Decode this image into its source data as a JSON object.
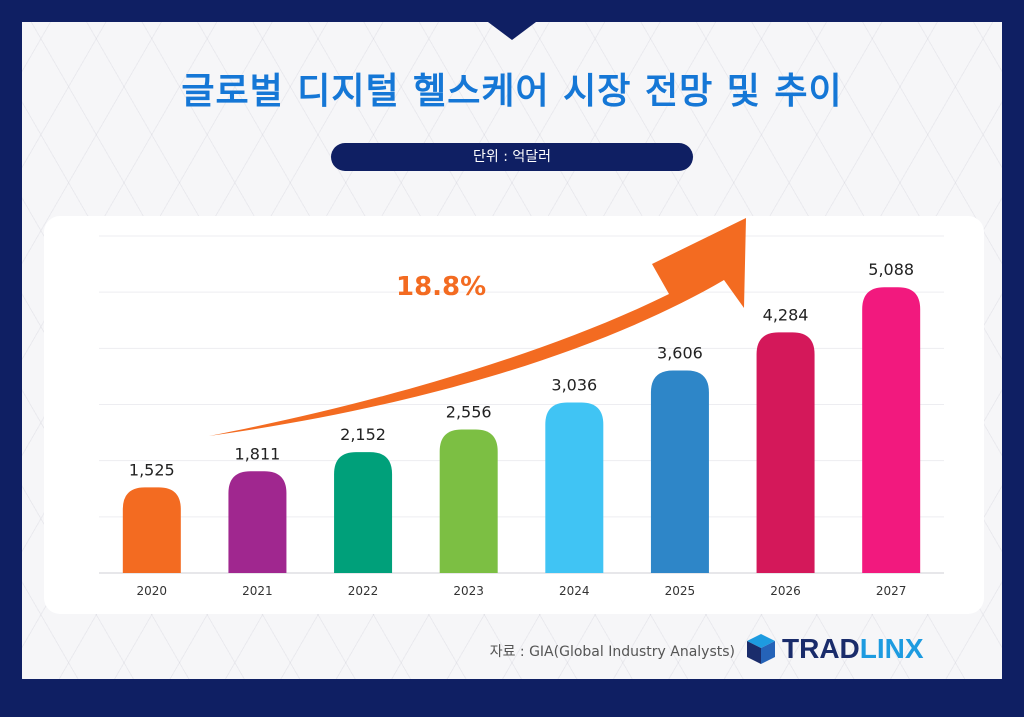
{
  "header": {
    "title": "글로벌 디지털 헬스케어 시장 전망 및 추이",
    "unit": "단위 : 억달러"
  },
  "growth_label": "18.8%",
  "source": "자료 : GIA(Global Industry Analysts)",
  "logo": {
    "part1": "TRAD",
    "part2": "LINX"
  },
  "chart_data": {
    "type": "bar",
    "title": "글로벌 디지털 헬스케어 시장 전망 및 추이",
    "unit": "단위 : 억달러",
    "categories": [
      "2020",
      "2021",
      "2022",
      "2023",
      "2024",
      "2025",
      "2026",
      "2027"
    ],
    "values": [
      1525,
      1811,
      2152,
      2556,
      3036,
      3606,
      4284,
      5088
    ],
    "value_labels": [
      "1,525",
      "1,811",
      "2,152",
      "2,556",
      "3,036",
      "3,606",
      "4,284",
      "5,088"
    ],
    "colors": [
      "#f36b21",
      "#a0278f",
      "#00a07a",
      "#7cbf43",
      "#40c4f4",
      "#2e86c8",
      "#d4185a",
      "#f2197e"
    ],
    "ylim": [
      0,
      6000
    ],
    "grid": true,
    "annotation": {
      "text": "18.8%",
      "color": "#f36b21"
    }
  }
}
